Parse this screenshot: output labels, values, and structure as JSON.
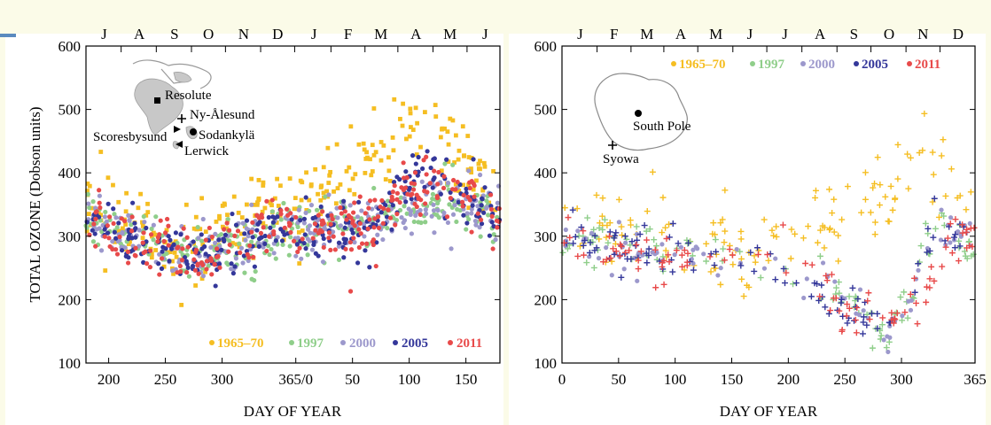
{
  "colors": {
    "1965-70": "#f5be22",
    "1997": "#8fce8a",
    "2000": "#9c98cc",
    "2005": "#34379a",
    "2011": "#e84a4a"
  },
  "chart_data": [
    {
      "type": "scatter",
      "panel": "left",
      "ylabel": "TOTAL OZONE (Dobson units)",
      "xlabel": "DAY OF YEAR",
      "x_domain": [
        180,
        545
      ],
      "ylim": [
        100,
        600
      ],
      "yticks": [
        "100",
        "200",
        "300",
        "400",
        "500",
        "600"
      ],
      "xticks": [
        {
          "day": 200,
          "label": "200"
        },
        {
          "day": 250,
          "label": "250"
        },
        {
          "day": 300,
          "label": "300"
        },
        {
          "day": 365,
          "label": "365/0"
        },
        {
          "day": 415,
          "label": "50"
        },
        {
          "day": 465,
          "label": "100"
        },
        {
          "day": 515,
          "label": "150"
        }
      ],
      "months": [
        {
          "label": "J",
          "day": 196
        },
        {
          "label": "A",
          "day": 227
        },
        {
          "label": "S",
          "day": 258
        },
        {
          "label": "O",
          "day": 288
        },
        {
          "label": "N",
          "day": 319
        },
        {
          "label": "D",
          "day": 349
        },
        {
          "label": "J",
          "day": 381
        },
        {
          "label": "F",
          "day": 411
        },
        {
          "label": "M",
          "day": 440
        },
        {
          "label": "A",
          "day": 471
        },
        {
          "label": "M",
          "day": 501
        },
        {
          "label": "J",
          "day": 532
        }
      ],
      "stations": [
        {
          "name": "Resolute",
          "marker": "square"
        },
        {
          "name": "Ny-Ålesund",
          "marker": "plus"
        },
        {
          "name": "Sodankylä",
          "marker": "circle"
        },
        {
          "name": "Scoresbysund",
          "marker": "triangle-right"
        },
        {
          "name": "Lerwick",
          "marker": "triangle-left"
        }
      ],
      "series": [
        {
          "name": "1965–70",
          "color_key": "1965-70",
          "marker": "square",
          "curve": [
            [
              180,
              340
            ],
            [
              200,
              335
            ],
            [
              230,
              305
            ],
            [
              260,
              285
            ],
            [
              290,
              290
            ],
            [
              320,
              330
            ],
            [
              350,
              345
            ],
            [
              380,
              360
            ],
            [
              420,
              400
            ],
            [
              440,
              430
            ],
            [
              460,
              480
            ],
            [
              480,
              470
            ],
            [
              500,
              445
            ],
            [
              520,
              410
            ],
            [
              545,
              350
            ]
          ]
        },
        {
          "name": "1997",
          "color_key": "1997",
          "marker": "circle",
          "curve": [
            [
              180,
              330
            ],
            [
              200,
              320
            ],
            [
              230,
              295
            ],
            [
              260,
              280
            ],
            [
              290,
              270
            ],
            [
              320,
              280
            ],
            [
              350,
              300
            ],
            [
              380,
              310
            ],
            [
              420,
              320
            ],
            [
              440,
              330
            ],
            [
              460,
              350
            ],
            [
              480,
              345
            ],
            [
              500,
              355
            ],
            [
              520,
              340
            ],
            [
              545,
              330
            ]
          ]
        },
        {
          "name": "2000",
          "color_key": "2000",
          "marker": "circle",
          "curve": [
            [
              180,
              325
            ],
            [
              200,
              315
            ],
            [
              230,
              290
            ],
            [
              260,
              275
            ],
            [
              290,
              270
            ],
            [
              320,
              290
            ],
            [
              350,
              310
            ],
            [
              380,
              315
            ],
            [
              420,
              320
            ],
            [
              440,
              330
            ],
            [
              460,
              345
            ],
            [
              480,
              350
            ],
            [
              500,
              355
            ],
            [
              520,
              345
            ],
            [
              545,
              330
            ]
          ]
        },
        {
          "name": "2005",
          "color_key": "2005",
          "marker": "circle",
          "curve": [
            [
              180,
              320
            ],
            [
              200,
              310
            ],
            [
              230,
              285
            ],
            [
              260,
              275
            ],
            [
              290,
              265
            ],
            [
              320,
              290
            ],
            [
              350,
              310
            ],
            [
              380,
              305
            ],
            [
              420,
              300
            ],
            [
              440,
              320
            ],
            [
              460,
              395
            ],
            [
              480,
              390
            ],
            [
              500,
              375
            ],
            [
              520,
              355
            ],
            [
              545,
              330
            ]
          ]
        },
        {
          "name": "2011",
          "color_key": "2011",
          "marker": "circle",
          "curve": [
            [
              180,
              315
            ],
            [
              200,
              305
            ],
            [
              230,
              285
            ],
            [
              260,
              280
            ],
            [
              290,
              275
            ],
            [
              320,
              295
            ],
            [
              350,
              310
            ],
            [
              380,
              315
            ],
            [
              420,
              310
            ],
            [
              440,
              325
            ],
            [
              460,
              380
            ],
            [
              480,
              375
            ],
            [
              500,
              370
            ],
            [
              520,
              350
            ],
            [
              545,
              325
            ]
          ]
        }
      ]
    },
    {
      "type": "scatter",
      "panel": "right",
      "xlabel": "DAY OF YEAR",
      "x_domain": [
        0,
        365
      ],
      "ylim": [
        100,
        600
      ],
      "yticks": [
        "100",
        "200",
        "300",
        "400",
        "500",
        "600"
      ],
      "xticks": [
        {
          "day": 0,
          "label": "0"
        },
        {
          "day": 50,
          "label": "50"
        },
        {
          "day": 100,
          "label": "100"
        },
        {
          "day": 150,
          "label": "150"
        },
        {
          "day": 200,
          "label": "200"
        },
        {
          "day": 250,
          "label": "250"
        },
        {
          "day": 300,
          "label": "300"
        },
        {
          "day": 365,
          "label": "365"
        }
      ],
      "months": [
        {
          "label": "J",
          "day": 16
        },
        {
          "label": "F",
          "day": 46
        },
        {
          "label": "M",
          "day": 75
        },
        {
          "label": "A",
          "day": 105
        },
        {
          "label": "M",
          "day": 136
        },
        {
          "label": "J",
          "day": 166
        },
        {
          "label": "J",
          "day": 197
        },
        {
          "label": "A",
          "day": 228
        },
        {
          "label": "S",
          "day": 258
        },
        {
          "label": "O",
          "day": 289
        },
        {
          "label": "N",
          "day": 319
        },
        {
          "label": "D",
          "day": 350
        }
      ],
      "stations": [
        {
          "name": "South Pole",
          "marker": "circle"
        },
        {
          "name": "Syowa",
          "marker": "plus"
        }
      ],
      "series": [
        {
          "name": "1965–70",
          "color_key": "1965-70",
          "marker": "plus",
          "curve": [
            [
              0,
              320
            ],
            [
              30,
              315
            ],
            [
              60,
              310
            ],
            [
              90,
              300
            ],
            [
              120,
              290
            ],
            [
              150,
              285
            ],
            [
              180,
              285
            ],
            [
              200,
              290
            ],
            [
              230,
              310
            ],
            [
              260,
              330
            ],
            [
              290,
              370
            ],
            [
              310,
              420
            ],
            [
              330,
              380
            ],
            [
              350,
              360
            ],
            [
              365,
              340
            ]
          ]
        },
        {
          "name": "1997",
          "color_key": "1997",
          "marker": "plus",
          "curve": [
            [
              0,
              300
            ],
            [
              30,
              290
            ],
            [
              60,
              285
            ],
            [
              90,
              280
            ],
            [
              120,
              275
            ],
            [
              150,
              270
            ],
            [
              180,
              265
            ],
            [
              200,
              255
            ],
            [
              230,
              225
            ],
            [
              260,
              195
            ],
            [
              290,
              150
            ],
            [
              310,
              220
            ],
            [
              330,
              320
            ],
            [
              350,
              300
            ],
            [
              365,
              290
            ]
          ]
        },
        {
          "name": "2000",
          "color_key": "2000",
          "marker": "circle",
          "curve": [
            [
              0,
              295
            ],
            [
              30,
              285
            ],
            [
              60,
              280
            ],
            [
              90,
              270
            ],
            [
              120,
              265
            ],
            [
              150,
              265
            ],
            [
              180,
              260
            ],
            [
              200,
              250
            ],
            [
              230,
              215
            ],
            [
              260,
              185
            ],
            [
              290,
              150
            ],
            [
              310,
              200
            ],
            [
              330,
              300
            ],
            [
              350,
              310
            ],
            [
              365,
              295
            ]
          ]
        },
        {
          "name": "2005",
          "color_key": "2005",
          "marker": "plus",
          "curve": [
            [
              0,
              295
            ],
            [
              30,
              290
            ],
            [
              60,
              280
            ],
            [
              90,
              275
            ],
            [
              120,
              270
            ],
            [
              150,
              270
            ],
            [
              180,
              260
            ],
            [
              200,
              245
            ],
            [
              230,
              205
            ],
            [
              260,
              170
            ],
            [
              290,
              150
            ],
            [
              310,
              230
            ],
            [
              330,
              330
            ],
            [
              350,
              310
            ],
            [
              365,
              295
            ]
          ]
        },
        {
          "name": "2011",
          "color_key": "2011",
          "marker": "plus",
          "curve": [
            [
              0,
              300
            ],
            [
              30,
              290
            ],
            [
              60,
              275
            ],
            [
              90,
              270
            ],
            [
              120,
              265
            ],
            [
              150,
              265
            ],
            [
              180,
              270
            ],
            [
              200,
              265
            ],
            [
              230,
              220
            ],
            [
              260,
              175
            ],
            [
              290,
              165
            ],
            [
              310,
              190
            ],
            [
              330,
              230
            ],
            [
              350,
              300
            ],
            [
              365,
              295
            ]
          ]
        }
      ]
    }
  ]
}
